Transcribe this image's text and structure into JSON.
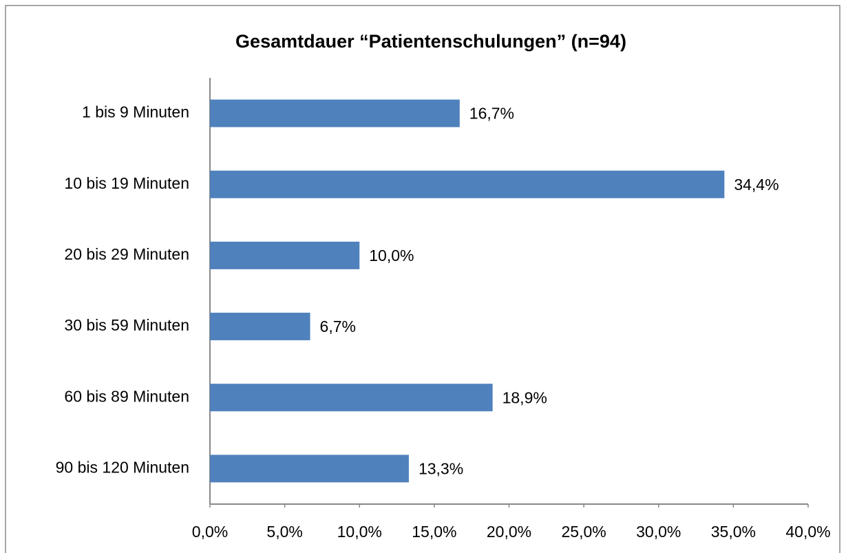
{
  "chart_data": {
    "type": "bar",
    "orientation": "horizontal",
    "title": "Gesamtdauer  “Patientenschulungen” (n=94)",
    "categories": [
      "1 bis 9 Minuten",
      "10 bis 19 Minuten",
      "20 bis 29 Minuten",
      "30 bis 59 Minuten",
      "60 bis 89 Minuten",
      "90 bis 120 Minuten"
    ],
    "values": [
      16.7,
      34.4,
      10.0,
      6.7,
      18.9,
      13.3
    ],
    "value_labels": [
      "16,7%",
      "34,4%",
      "10,0%",
      "6,7%",
      "18,9%",
      "13,3%"
    ],
    "color": "#4f81bd",
    "xlim": [
      0,
      40
    ],
    "xticks": [
      {
        "value": 0,
        "label": "0,0%"
      },
      {
        "value": 5,
        "label": "5,0%"
      },
      {
        "value": 10,
        "label": "10,0%"
      },
      {
        "value": 15,
        "label": "15,0%"
      },
      {
        "value": 20,
        "label": "20,0%"
      },
      {
        "value": 25,
        "label": "25,0%"
      },
      {
        "value": 30,
        "label": "30,0%"
      },
      {
        "value": 35,
        "label": "35,0%"
      },
      {
        "value": 40,
        "label": "40,0%"
      }
    ],
    "grid": false
  }
}
